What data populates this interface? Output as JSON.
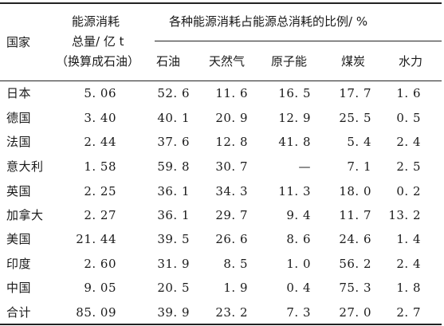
{
  "table": {
    "headers": {
      "country": "国家",
      "total_line1": "能源消耗",
      "total_line2": "总量/ 亿 t",
      "total_line3": "（换算成石油）",
      "ratio_group": "各种能源消耗占能源总消耗的比例/ %",
      "sub": [
        "石油",
        "天然气",
        "原子能",
        "煤炭",
        "水力"
      ]
    },
    "rows": [
      {
        "country": "日本",
        "total": "5. 06",
        "oil": "52. 6",
        "gas": "11. 6",
        "nuclear": "16. 5",
        "coal": "17. 7",
        "hydro": "1. 6"
      },
      {
        "country": "德国",
        "total": "3. 40",
        "oil": "40. 1",
        "gas": "20. 9",
        "nuclear": "12. 9",
        "coal": "25. 5",
        "hydro": "0. 5"
      },
      {
        "country": "法国",
        "total": "2. 44",
        "oil": "37. 6",
        "gas": "12. 8",
        "nuclear": "41. 8",
        "coal": "5. 4",
        "hydro": "2. 4"
      },
      {
        "country": "意大利",
        "total": "1. 58",
        "oil": "59. 8",
        "gas": "30. 7",
        "nuclear": "—",
        "coal": "7. 1",
        "hydro": "2. 5"
      },
      {
        "country": "英国",
        "total": "2. 25",
        "oil": "36. 1",
        "gas": "34. 3",
        "nuclear": "11. 3",
        "coal": "18. 0",
        "hydro": "0. 2"
      },
      {
        "country": "加拿大",
        "total": "2. 27",
        "oil": "36. 1",
        "gas": "29. 7",
        "nuclear": "9. 4",
        "coal": "11. 7",
        "hydro": "13. 2"
      },
      {
        "country": "美国",
        "total": "21. 44",
        "oil": "39. 5",
        "gas": "26. 6",
        "nuclear": "8. 6",
        "coal": "24. 6",
        "hydro": "1. 4"
      },
      {
        "country": "印度",
        "total": "2. 60",
        "oil": "31. 9",
        "gas": "8. 5",
        "nuclear": "1. 0",
        "coal": "56. 2",
        "hydro": "2. 4"
      },
      {
        "country": "中国",
        "total": "9. 05",
        "oil": "20. 5",
        "gas": "1. 9",
        "nuclear": "0. 4",
        "coal": "75. 3",
        "hydro": "1. 8"
      },
      {
        "country": "合计",
        "total": "85. 09",
        "oil": "39. 9",
        "gas": "23. 2",
        "nuclear": "7. 3",
        "coal": "27. 0",
        "hydro": "2. 7"
      }
    ]
  }
}
